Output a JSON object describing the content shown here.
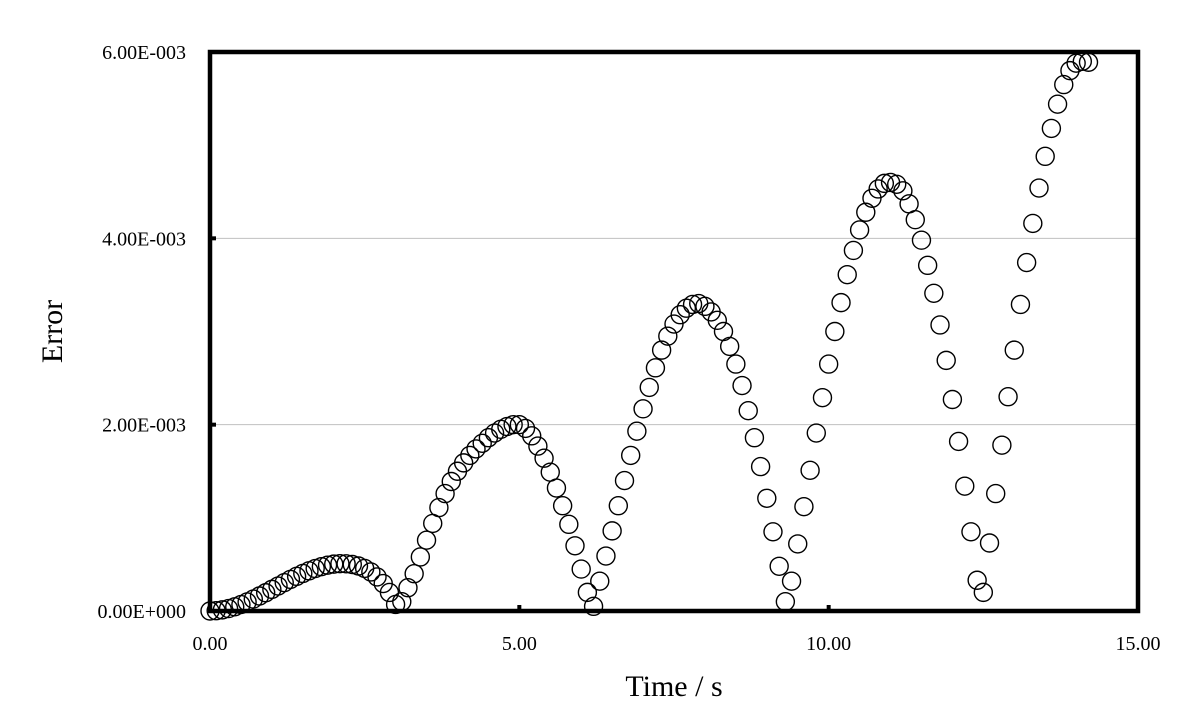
{
  "chart_data": {
    "type": "scatter",
    "title": "",
    "xlabel": "Time / s",
    "ylabel": "Error",
    "xlim": [
      0,
      15
    ],
    "ylim": [
      0,
      0.006
    ],
    "x_ticks": [
      0,
      5,
      10,
      15
    ],
    "x_tick_labels": [
      "0.00",
      "5.00",
      "10.00",
      "15.00"
    ],
    "y_ticks": [
      0,
      0.002,
      0.004,
      0.006
    ],
    "y_tick_labels": [
      "0.00E+000",
      "2.00E-003",
      "4.00E-003",
      "6.00E-003"
    ],
    "grid": "horizontal",
    "legend": "none",
    "marker": "open-circle",
    "series": [
      {
        "x": [
          0.0,
          0.1,
          0.2,
          0.3,
          0.4,
          0.5,
          0.6,
          0.7,
          0.8,
          0.9,
          1.0,
          1.1,
          1.2,
          1.3,
          1.4,
          1.5,
          1.6,
          1.7,
          1.8,
          1.9,
          2.0,
          2.1,
          2.2,
          2.3,
          2.4,
          2.5,
          2.6,
          2.7,
          2.8,
          2.9,
          3.0,
          3.1,
          3.2,
          3.3,
          3.4,
          3.5,
          3.6,
          3.7,
          3.8,
          3.9,
          4.0,
          4.1,
          4.2,
          4.3,
          4.4,
          4.5,
          4.6,
          4.7,
          4.8,
          4.9,
          5.0,
          5.1,
          5.2,
          5.3,
          5.4,
          5.5,
          5.6,
          5.7,
          5.8,
          5.9,
          6.0,
          6.1,
          6.2,
          6.3,
          6.4,
          6.5,
          6.6,
          6.7,
          6.8,
          6.9,
          7.0,
          7.1,
          7.2,
          7.3,
          7.4,
          7.5,
          7.6,
          7.7,
          7.8,
          7.9,
          8.0,
          8.1,
          8.2,
          8.3,
          8.4,
          8.5,
          8.6,
          8.7,
          8.8,
          8.9,
          9.0,
          9.1,
          9.2,
          9.3,
          9.4,
          9.5,
          9.6,
          9.7,
          9.8,
          9.9,
          10.0,
          10.1,
          10.2,
          10.3,
          10.4,
          10.5,
          10.6,
          10.7,
          10.8,
          10.9,
          11.0,
          11.1,
          11.2,
          11.3,
          11.4,
          11.5,
          11.6,
          11.7,
          11.8,
          11.9,
          12.0,
          12.1,
          12.2,
          12.3,
          12.4,
          12.5,
          12.6,
          12.7,
          12.8,
          12.9,
          13.0,
          13.1,
          13.2,
          13.3,
          13.4,
          13.5,
          13.6,
          13.7,
          13.8,
          13.9,
          14.0,
          14.1,
          14.2
        ],
        "y": [
          0.0,
          3e-06,
          1.2e-05,
          2.6e-05,
          4.5e-05,
          6.9e-05,
          9.7e-05,
          0.000128,
          0.000161,
          0.000196,
          0.000232,
          0.000268,
          0.000304,
          0.000339,
          0.000372,
          0.000403,
          0.000431,
          0.000456,
          0.000476,
          0.000492,
          0.000503,
          0.000508,
          0.000507,
          0.000499,
          0.000483,
          0.000457,
          0.000419,
          0.000366,
          0.000295,
          0.000199,
          7e-05,
          0.0001,
          0.00025,
          0.0004,
          0.00058,
          0.00076,
          0.00094,
          0.00111,
          0.00126,
          0.00139,
          0.0015,
          0.00159,
          0.00167,
          0.00174,
          0.0018,
          0.00186,
          0.00191,
          0.00195,
          0.00198,
          0.002,
          0.002,
          0.00196,
          0.00188,
          0.00177,
          0.00164,
          0.00149,
          0.00132,
          0.00113,
          0.00093,
          0.0007,
          0.00045,
          0.0002,
          5e-05,
          0.00032,
          0.00059,
          0.00086,
          0.00113,
          0.0014,
          0.00167,
          0.00193,
          0.00217,
          0.0024,
          0.00261,
          0.0028,
          0.00295,
          0.00308,
          0.00318,
          0.00325,
          0.00329,
          0.0033,
          0.00327,
          0.00321,
          0.00312,
          0.003,
          0.00284,
          0.00265,
          0.00242,
          0.00215,
          0.00186,
          0.00155,
          0.00121,
          0.00085,
          0.00048,
          0.0001,
          0.00032,
          0.00072,
          0.00112,
          0.00151,
          0.00191,
          0.00229,
          0.00265,
          0.003,
          0.00331,
          0.00361,
          0.00387,
          0.00409,
          0.00428,
          0.00443,
          0.00453,
          0.00459,
          0.0046,
          0.00458,
          0.00451,
          0.00437,
          0.0042,
          0.00398,
          0.00371,
          0.00341,
          0.00307,
          0.00269,
          0.00227,
          0.00182,
          0.00134,
          0.00085,
          0.00033,
          0.0002,
          0.00073,
          0.00126,
          0.00178,
          0.0023,
          0.0028,
          0.00329,
          0.00374,
          0.00416,
          0.00454,
          0.00488,
          0.00518,
          0.00544,
          0.00565,
          0.0058,
          0.00588,
          0.0059,
          0.00589
        ]
      }
    ]
  },
  "style": {
    "grid_color": "#c0c0c0",
    "frame_color": "#000000",
    "marker_stroke": "#000000"
  }
}
